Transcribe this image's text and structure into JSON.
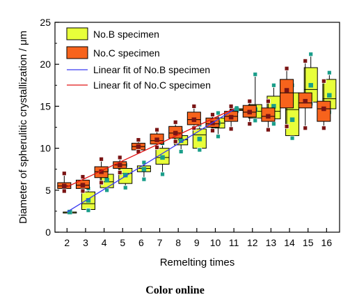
{
  "chart_data": {
    "type": "box",
    "xlabel": "Remelting times",
    "ylabel": "Diameter of spherulitic crystallization / μm",
    "x": [
      2,
      3,
      4,
      5,
      6,
      7,
      8,
      9,
      10,
      11,
      12,
      13,
      14,
      15,
      16
    ],
    "xlim": [
      1.35,
      16.7
    ],
    "ylim": [
      0,
      25
    ],
    "yticks": [
      0,
      5,
      10,
      15,
      20,
      25
    ],
    "legend_position": "top-left",
    "series": [
      {
        "name": "No.B specimen",
        "fill": "#e8ff3a",
        "marker": "#1a9e8a",
        "boxes": [
          {
            "x": 2,
            "min": 2.4,
            "q1": 2.4,
            "median": 2.4,
            "q3": 2.4,
            "max": 2.4,
            "mean": 2.4
          },
          {
            "x": 3,
            "min": 2.6,
            "q1": 2.7,
            "median": 3.4,
            "q3": 4.8,
            "max": 5.2,
            "mean": 3.8
          },
          {
            "x": 4,
            "min": 5.0,
            "q1": 5.3,
            "median": 6.0,
            "q3": 6.9,
            "max": 7.4,
            "mean": 6.2
          },
          {
            "x": 5,
            "min": 5.3,
            "q1": 5.8,
            "median": 7.0,
            "q3": 7.6,
            "max": 8.0,
            "mean": 6.8
          },
          {
            "x": 6,
            "min": 6.3,
            "q1": 7.2,
            "median": 7.6,
            "q3": 7.9,
            "max": 8.3,
            "mean": 7.5
          },
          {
            "x": 7,
            "min": 6.9,
            "q1": 8.1,
            "median": 8.9,
            "q3": 10.0,
            "max": 10.6,
            "mean": 8.9
          },
          {
            "x": 8,
            "min": 9.6,
            "q1": 10.4,
            "median": 11.0,
            "q3": 11.5,
            "max": 12.0,
            "mean": 10.9
          },
          {
            "x": 9,
            "min": 9.8,
            "q1": 10.0,
            "median": 11.6,
            "q3": 12.3,
            "max": 12.8,
            "mean": 11.1
          },
          {
            "x": 10,
            "min": 11.4,
            "q1": 12.4,
            "median": 13.0,
            "q3": 13.6,
            "max": 14.2,
            "mean": 13.0
          },
          {
            "x": 11,
            "min": 14.4,
            "q1": 14.5,
            "median": 14.6,
            "q3": 14.7,
            "max": 14.8,
            "mean": 14.6
          },
          {
            "x": 12,
            "min": 13.3,
            "q1": 13.6,
            "median": 14.4,
            "q3": 15.2,
            "max": 18.8,
            "mean": 14.6
          },
          {
            "x": 13,
            "min": 12.9,
            "q1": 13.5,
            "median": 14.4,
            "q3": 16.2,
            "max": 17.5,
            "mean": 15.0
          },
          {
            "x": 14,
            "min": 11.2,
            "q1": 11.5,
            "median": 14.6,
            "q3": 16.6,
            "max": 17.5,
            "mean": 13.4
          },
          {
            "x": 15,
            "min": 15.3,
            "q1": 15.5,
            "median": 17.0,
            "q3": 19.6,
            "max": 21.2,
            "mean": 17.5
          },
          {
            "x": 16,
            "min": 14.3,
            "q1": 14.7,
            "median": 15.9,
            "q3": 18.2,
            "max": 19.0,
            "mean": 16.3
          }
        ]
      },
      {
        "name": "No.C specimen",
        "fill": "#f7631c",
        "marker": "#7a1414",
        "boxes": [
          {
            "x": 2,
            "min": 4.9,
            "q1": 5.2,
            "median": 5.5,
            "q3": 5.9,
            "max": 7.0,
            "mean": 5.5
          },
          {
            "x": 3,
            "min": 4.9,
            "q1": 5.2,
            "median": 5.6,
            "q3": 6.2,
            "max": 6.6,
            "mean": 5.6
          },
          {
            "x": 4,
            "min": 5.9,
            "q1": 6.5,
            "median": 7.2,
            "q3": 7.8,
            "max": 8.7,
            "mean": 7.2
          },
          {
            "x": 5,
            "min": 7.1,
            "q1": 7.6,
            "median": 8.0,
            "q3": 8.4,
            "max": 8.9,
            "mean": 8.0
          },
          {
            "x": 6,
            "min": 9.6,
            "q1": 9.8,
            "median": 10.2,
            "q3": 10.6,
            "max": 11.0,
            "mean": 10.2
          },
          {
            "x": 7,
            "min": 10.1,
            "q1": 10.5,
            "median": 10.9,
            "q3": 11.7,
            "max": 12.2,
            "mean": 11.0
          },
          {
            "x": 8,
            "min": 10.8,
            "q1": 11.2,
            "median": 11.8,
            "q3": 12.6,
            "max": 13.1,
            "mean": 11.8
          },
          {
            "x": 9,
            "min": 12.4,
            "q1": 12.8,
            "median": 13.4,
            "q3": 14.3,
            "max": 15.0,
            "mean": 13.4
          },
          {
            "x": 10,
            "min": 12.1,
            "q1": 12.5,
            "median": 12.9,
            "q3": 13.6,
            "max": 14.0,
            "mean": 13.0
          },
          {
            "x": 11,
            "min": 12.3,
            "q1": 13.2,
            "median": 13.8,
            "q3": 14.4,
            "max": 15.0,
            "mean": 13.7
          },
          {
            "x": 12,
            "min": 12.9,
            "q1": 13.7,
            "median": 14.3,
            "q3": 15.1,
            "max": 15.6,
            "mean": 14.3
          },
          {
            "x": 13,
            "min": 12.2,
            "q1": 13.2,
            "median": 13.8,
            "q3": 14.8,
            "max": 15.6,
            "mean": 13.8
          },
          {
            "x": 14,
            "min": 12.6,
            "q1": 14.8,
            "median": 16.6,
            "q3": 18.2,
            "max": 19.5,
            "mean": 16.9
          },
          {
            "x": 15,
            "min": 12.4,
            "q1": 14.8,
            "median": 15.4,
            "q3": 16.6,
            "max": 20.4,
            "mean": 15.6
          },
          {
            "x": 16,
            "min": 12.4,
            "q1": 13.2,
            "median": 14.7,
            "q3": 15.6,
            "max": 18.0,
            "mean": 14.7
          }
        ]
      }
    ],
    "fits": [
      {
        "name": "Linear fit of No.B specimen",
        "color": "#3a3af2",
        "x": [
          2,
          11
        ],
        "y": [
          2.4,
          14.6
        ]
      },
      {
        "name": "Linear fit of No.C specimen",
        "color": "#e11414",
        "x": [
          2,
          11
        ],
        "y": [
          5.4,
          14.7
        ]
      }
    ]
  },
  "caption": "Color online"
}
